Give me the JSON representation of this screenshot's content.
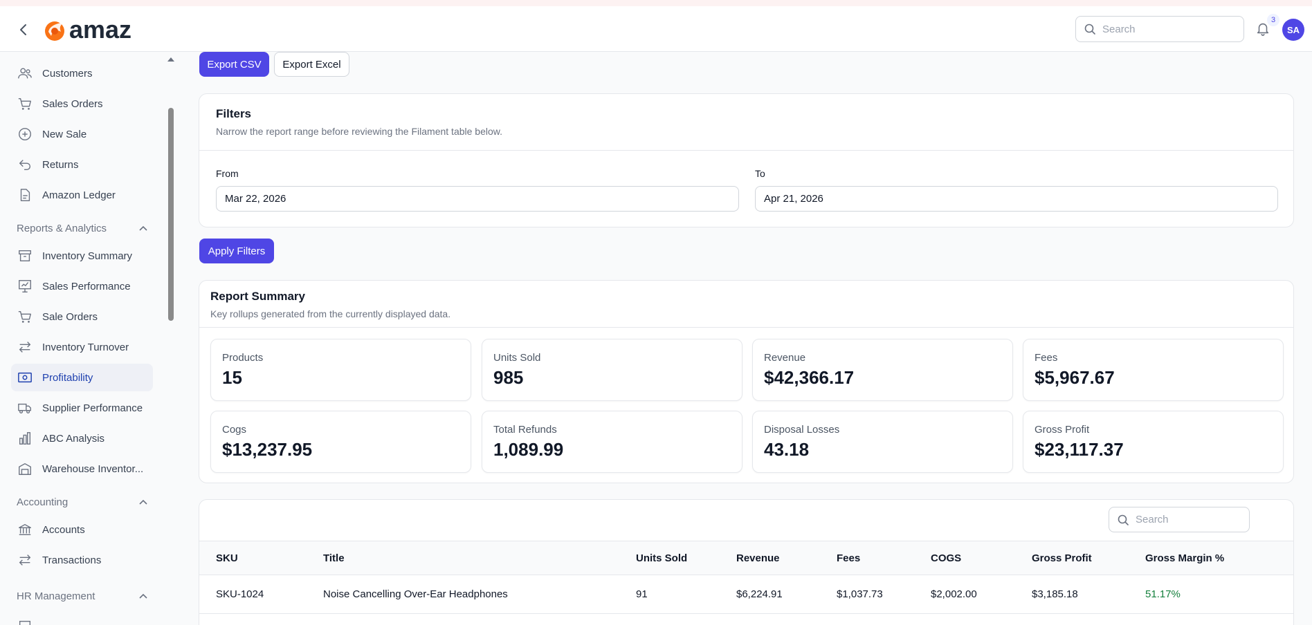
{
  "header": {
    "logo_text": "amaz",
    "search_placeholder": "Search",
    "notification_count": "3",
    "avatar_initials": "SA"
  },
  "sidebar": {
    "items_top": [
      {
        "label": "Customers",
        "icon": "users-icon"
      },
      {
        "label": "Sales Orders",
        "icon": "cart-icon"
      },
      {
        "label": "New Sale",
        "icon": "plus-circle-icon"
      },
      {
        "label": "Returns",
        "icon": "return-arrow-icon"
      },
      {
        "label": "Amazon Ledger",
        "icon": "document-icon"
      }
    ],
    "group_reports": "Reports & Analytics",
    "reports_items": [
      {
        "label": "Inventory Summary",
        "icon": "archive-box-icon"
      },
      {
        "label": "Sales Performance",
        "icon": "chart-presentation-icon"
      },
      {
        "label": "Sale Orders",
        "icon": "cart-icon"
      },
      {
        "label": "Inventory Turnover",
        "icon": "arrows-exchange-icon"
      },
      {
        "label": "Profitability",
        "icon": "banknote-icon",
        "active": true
      },
      {
        "label": "Supplier Performance",
        "icon": "truck-icon"
      },
      {
        "label": "ABC Analysis",
        "icon": "bar-chart-icon"
      },
      {
        "label": "Warehouse Inventor...",
        "icon": "warehouse-icon"
      }
    ],
    "group_accounting": "Accounting",
    "accounting_items": [
      {
        "label": "Accounts",
        "icon": "bank-icon"
      },
      {
        "label": "Transactions",
        "icon": "arrows-exchange-icon"
      }
    ],
    "group_hr": "HR Management"
  },
  "actions": {
    "export_csv": "Export CSV",
    "export_excel": "Export Excel",
    "apply_filters": "Apply Filters"
  },
  "filters": {
    "title": "Filters",
    "description": "Narrow the report range before reviewing the Filament table below.",
    "from_label": "From",
    "from_value": "Mar 22, 2026",
    "to_label": "To",
    "to_value": "Apr 21, 2026"
  },
  "summary": {
    "title": "Report Summary",
    "description": "Key rollups generated from the currently displayed data.",
    "stats": [
      {
        "label": "Products",
        "value": "15"
      },
      {
        "label": "Units Sold",
        "value": "985"
      },
      {
        "label": "Revenue",
        "value": "$42,366.17"
      },
      {
        "label": "Fees",
        "value": "$5,967.67"
      },
      {
        "label": "Cogs",
        "value": "$13,237.95"
      },
      {
        "label": "Total Refunds",
        "value": "1,089.99"
      },
      {
        "label": "Disposal Losses",
        "value": "43.18"
      },
      {
        "label": "Gross Profit",
        "value": "$23,117.37"
      }
    ]
  },
  "table": {
    "search_placeholder": "Search",
    "columns": [
      "SKU",
      "Title",
      "Units Sold",
      "Revenue",
      "Fees",
      "COGS",
      "Gross Profit",
      "Gross Margin %"
    ],
    "rows": [
      [
        "SKU-1024",
        "Noise Cancelling Over-Ear Headphones",
        "91",
        "$6,224.91",
        "$1,037.73",
        "$2,002.00",
        "$3,185.18",
        "51.17%"
      ]
    ]
  },
  "colors": {
    "primary": "#4f46e5",
    "active_nav_text": "#1e40af",
    "margin_positive": "#15803d"
  }
}
